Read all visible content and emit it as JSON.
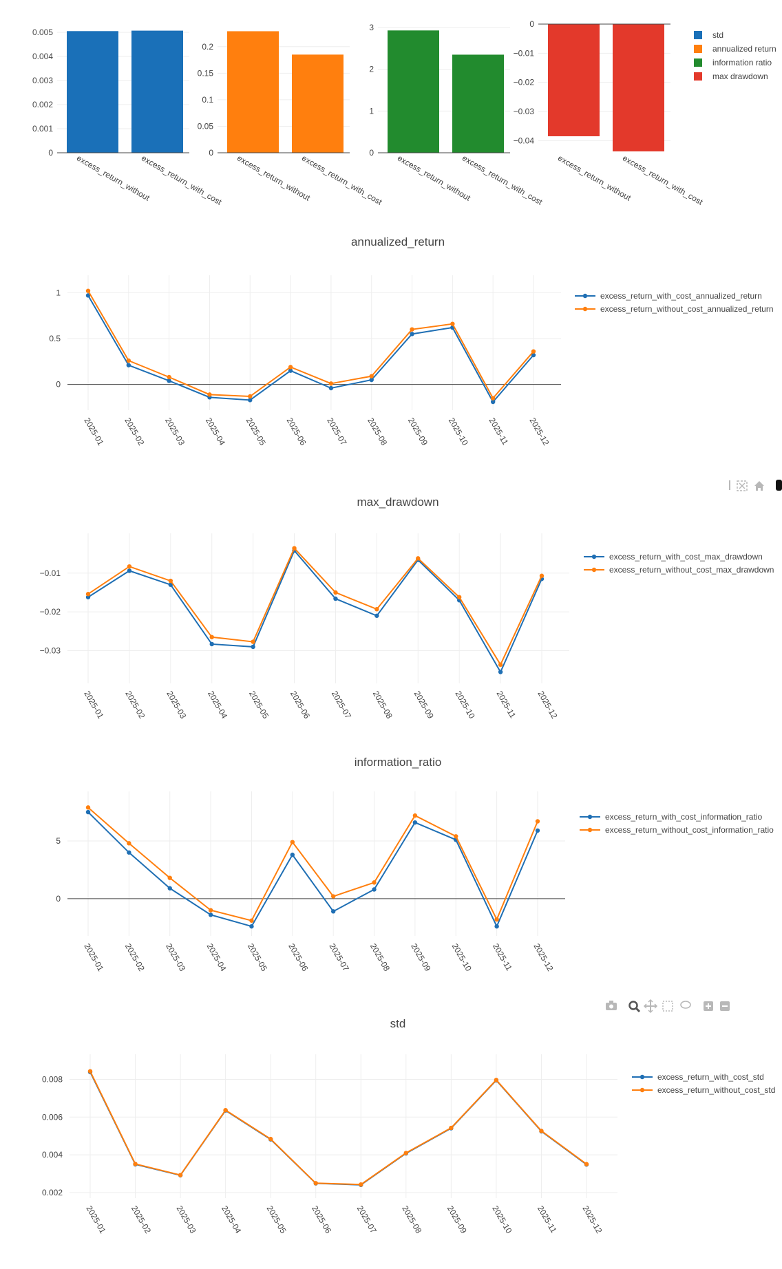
{
  "colors": {
    "with_cost": "#1f6fb4",
    "without_cost": "#ff7f0e",
    "std": "#1a70b8",
    "annualized_return": "#ff7f0e",
    "information_ratio": "#228b2e",
    "max_drawdown": "#e3392b",
    "grid": "#eeeeee",
    "zeroline": "#444444",
    "modebar": "#b8b8b8"
  },
  "modebar": [
    "camera-icon",
    "zoom-icon",
    "pan-icon",
    "box-select-icon",
    "lasso-icon",
    "zoom-in-icon",
    "zoom-out-icon"
  ],
  "chart_data": [
    {
      "type": "bar",
      "id": "summary",
      "categories": [
        "excess_return_without_cost",
        "excess_return_with_cost"
      ],
      "panels": [
        {
          "metric": "std",
          "values": [
            0.00505,
            0.00507
          ],
          "ylim": [
            0,
            0.0052
          ],
          "ticks": [
            0,
            0.001,
            0.002,
            0.003,
            0.004,
            0.005
          ],
          "tick_labels": [
            "0",
            "0.001",
            "0.002",
            "0.003",
            "0.004",
            "0.005"
          ]
        },
        {
          "metric": "annualized return",
          "values": [
            0.229,
            0.185
          ],
          "ylim": [
            0,
            0.236
          ],
          "ticks": [
            0,
            0.05,
            0.1,
            0.15,
            0.2
          ],
          "tick_labels": [
            "0",
            "0.05",
            "0.1",
            "0.15",
            "0.2"
          ]
        },
        {
          "metric": "information ratio",
          "values": [
            2.93,
            2.35
          ],
          "ylim": [
            0,
            3.0
          ],
          "ticks": [
            0,
            1,
            2,
            3
          ],
          "tick_labels": [
            "0",
            "1",
            "2",
            "3"
          ]
        },
        {
          "metric": "max drawdown",
          "values": [
            -0.0385,
            -0.0437
          ],
          "ylim": [
            -0.0437,
            0
          ],
          "ticks": [
            0,
            -0.01,
            -0.02,
            -0.03,
            -0.04
          ],
          "tick_labels": [
            "0",
            "−0.01",
            "−0.02",
            "−0.03",
            "−0.04"
          ]
        }
      ],
      "legend": [
        "std",
        "annualized return",
        "information ratio",
        "max drawdown"
      ],
      "legend_position": "right"
    },
    {
      "type": "line",
      "id": "annualized_return",
      "title": "annualized_return",
      "x": [
        "2025-01",
        "2025-02",
        "2025-03",
        "2025-04",
        "2025-05",
        "2025-06",
        "2025-07",
        "2025-08",
        "2025-09",
        "2025-10",
        "2025-11",
        "2025-12"
      ],
      "series": [
        {
          "name": "excess_return_with_cost_annualized_return",
          "values": [
            0.97,
            0.21,
            0.04,
            -0.14,
            -0.17,
            0.15,
            -0.04,
            0.05,
            0.55,
            0.62,
            -0.19,
            0.32
          ]
        },
        {
          "name": "excess_return_without_cost_annualized_return",
          "values": [
            1.02,
            0.26,
            0.08,
            -0.11,
            -0.13,
            0.19,
            0.01,
            0.09,
            0.6,
            0.66,
            -0.15,
            0.36
          ]
        }
      ],
      "ylim": [
        -0.22,
        1.04
      ],
      "yticks": [
        0,
        0.5,
        1
      ],
      "ytick_labels": [
        "0",
        "0.5",
        "1"
      ],
      "zeroline": true,
      "grid": true,
      "legend_position": "top-right"
    },
    {
      "type": "line",
      "id": "max_drawdown",
      "title": "max_drawdown",
      "x": [
        "2025-01",
        "2025-02",
        "2025-03",
        "2025-04",
        "2025-05",
        "2025-06",
        "2025-07",
        "2025-08",
        "2025-09",
        "2025-10",
        "2025-11",
        "2025-12"
      ],
      "series": [
        {
          "name": "excess_return_with_cost_max_drawdown",
          "values": [
            -0.0162,
            -0.0094,
            -0.013,
            -0.0283,
            -0.029,
            -0.0042,
            -0.0166,
            -0.021,
            -0.0066,
            -0.017,
            -0.0355,
            -0.0115
          ]
        },
        {
          "name": "excess_return_without_cost_max_drawdown",
          "values": [
            -0.0154,
            -0.0083,
            -0.012,
            -0.0265,
            -0.0277,
            -0.0036,
            -0.015,
            -0.0193,
            -0.0062,
            -0.0162,
            -0.0336,
            -0.0107
          ]
        }
      ],
      "ylim": [
        -0.037,
        -0.0033
      ],
      "yticks": [
        -0.01,
        -0.02,
        -0.03
      ],
      "ytick_labels": [
        "−0.01",
        "−0.02",
        "−0.03"
      ],
      "zeroline": false,
      "grid": true,
      "legend_position": "top-right"
    },
    {
      "type": "line",
      "id": "information_ratio",
      "title": "information_ratio",
      "x": [
        "2025-01",
        "2025-02",
        "2025-03",
        "2025-04",
        "2025-05",
        "2025-06",
        "2025-07",
        "2025-08",
        "2025-09",
        "2025-10",
        "2025-11",
        "2025-12"
      ],
      "series": [
        {
          "name": "excess_return_with_cost_information_ratio",
          "values": [
            7.5,
            4.0,
            0.9,
            -1.4,
            -2.4,
            3.8,
            -1.1,
            0.8,
            6.6,
            5.1,
            -2.4,
            5.9
          ]
        },
        {
          "name": "excess_return_without_cost_information_ratio",
          "values": [
            7.9,
            4.8,
            1.8,
            -1.0,
            -1.9,
            4.9,
            0.2,
            1.4,
            7.2,
            5.4,
            -1.8,
            6.7
          ]
        }
      ],
      "ylim": [
        -2.75,
        8.1
      ],
      "yticks": [
        0,
        5
      ],
      "ytick_labels": [
        "0",
        "5"
      ],
      "zeroline": true,
      "grid": true,
      "legend_position": "top-right"
    },
    {
      "type": "line",
      "id": "std",
      "title": "std",
      "x": [
        "2025-01",
        "2025-02",
        "2025-03",
        "2025-04",
        "2025-05",
        "2025-06",
        "2025-07",
        "2025-08",
        "2025-09",
        "2025-10",
        "2025-11",
        "2025-12"
      ],
      "series": [
        {
          "name": "excess_return_with_cost_std",
          "values": [
            0.00839,
            0.0035,
            0.00292,
            0.00635,
            0.00482,
            0.00249,
            0.00241,
            0.00408,
            0.00541,
            0.00795,
            0.00525,
            0.00349
          ]
        },
        {
          "name": "excess_return_without_cost_std",
          "values": [
            0.00843,
            0.00352,
            0.00293,
            0.00637,
            0.00484,
            0.0025,
            0.00243,
            0.0041,
            0.00543,
            0.00797,
            0.00527,
            0.00351
          ]
        }
      ],
      "ylim": [
        0.002,
        0.0086
      ],
      "yticks": [
        0.002,
        0.004,
        0.006,
        0.008
      ],
      "ytick_labels": [
        "0.002",
        "0.004",
        "0.006",
        "0.008"
      ],
      "zeroline": false,
      "grid": true,
      "legend_position": "top-right"
    }
  ]
}
